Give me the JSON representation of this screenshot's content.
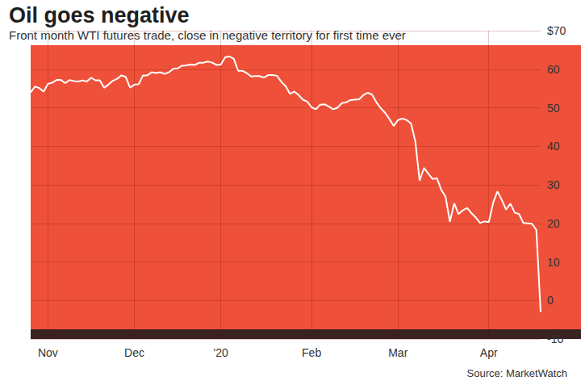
{
  "chart_data": {
    "type": "line",
    "title": "Oil goes negative",
    "subtitle": "Front month WTI futures trade, close in negative territory for first time ever",
    "source": "Source: MarketWatch",
    "color": "#ffffff",
    "grid": true,
    "categories": [
      null,
      null,
      null,
      null,
      "Nov",
      null,
      null,
      null,
      null,
      null,
      null,
      null,
      null,
      null,
      null,
      null,
      null,
      null,
      null,
      null,
      null,
      null,
      null,
      null,
      "Dec",
      null,
      null,
      null,
      null,
      null,
      null,
      null,
      null,
      null,
      null,
      null,
      null,
      null,
      null,
      null,
      null,
      null,
      null,
      null,
      "'20",
      null,
      null,
      null,
      null,
      null,
      null,
      null,
      null,
      null,
      null,
      null,
      null,
      null,
      null,
      null,
      null,
      null,
      null,
      null,
      null,
      "Feb",
      null,
      null,
      null,
      null,
      null,
      null,
      null,
      null,
      null,
      null,
      null,
      null,
      null,
      null,
      null,
      null,
      null,
      null,
      null,
      "Mar",
      null,
      null,
      null,
      null,
      null,
      null,
      null,
      null,
      null,
      null,
      null,
      null,
      null,
      null,
      null,
      null,
      null,
      null,
      null,
      null,
      "Apr",
      null,
      null,
      null,
      null,
      null,
      null,
      null,
      null,
      null,
      null,
      null,
      null
    ],
    "values": [
      54.0,
      55.5,
      55.1,
      54.2,
      56.2,
      56.5,
      57.2,
      57.2,
      56.4,
      57.2,
      56.9,
      56.8,
      57.1,
      56.8,
      57.8,
      57.1,
      57.1,
      55.2,
      56.0,
      57.0,
      57.5,
      58.4,
      58.0,
      55.2,
      56.0,
      56.1,
      58.4,
      58.4,
      59.2,
      59.0,
      59.2,
      58.8,
      59.2,
      60.1,
      60.2,
      60.9,
      61.0,
      61.2,
      61.1,
      61.7,
      61.7,
      62.0,
      61.7,
      61.1,
      61.2,
      63.1,
      63.3,
      62.7,
      59.6,
      59.6,
      59.0,
      58.1,
      58.2,
      58.2,
      57.8,
      58.5,
      58.5,
      58.3,
      56.7,
      55.6,
      53.6,
      54.2,
      53.3,
      52.1,
      51.6,
      50.1,
      49.6,
      50.8,
      50.9,
      50.3,
      49.6,
      50.0,
      51.2,
      51.4,
      52.0,
      52.1,
      52.2,
      53.3,
      53.9,
      53.4,
      51.4,
      49.9,
      48.7,
      47.1,
      45.3,
      46.8,
      47.2,
      46.8,
      45.9,
      41.3,
      31.1,
      34.4,
      32.9,
      31.5,
      31.7,
      28.7,
      26.9,
      20.4,
      25.2,
      22.4,
      23.4,
      24.0,
      22.6,
      21.5,
      20.1,
      20.5,
      20.3,
      25.3,
      28.3,
      26.1,
      23.6,
      25.1,
      22.8,
      22.4,
      20.1,
      20.0,
      19.9,
      18.3,
      -3.0
    ],
    "ylim": [
      -10,
      70
    ],
    "yticks": [
      -10,
      0,
      10,
      20,
      30,
      40,
      50,
      60,
      {
        "value": 70,
        "label": "$70"
      }
    ]
  }
}
